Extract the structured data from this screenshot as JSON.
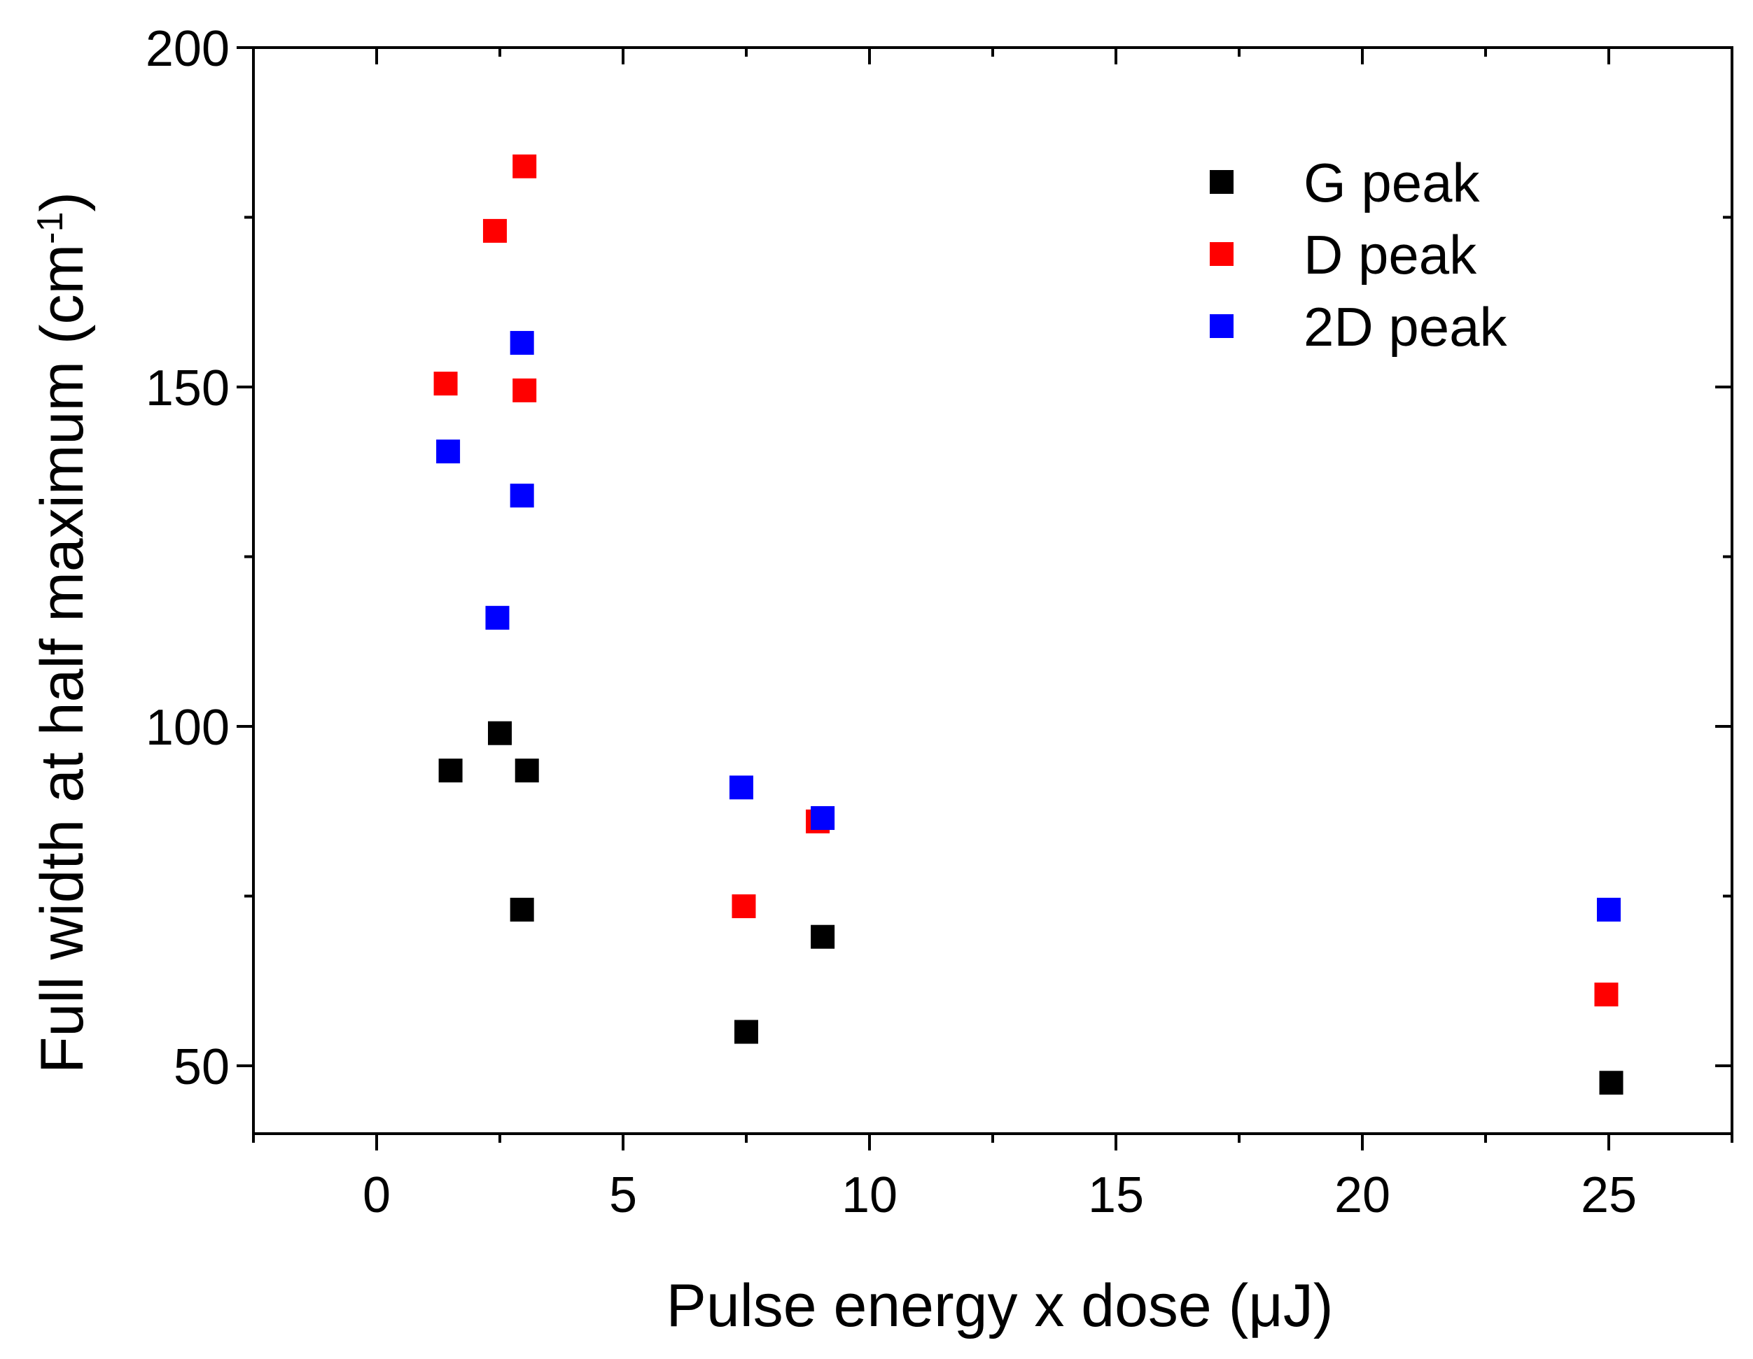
{
  "chart_data": {
    "type": "scatter",
    "title": "",
    "xlabel": "Pulse energy x dose (μJ)",
    "ylabel_main": "Full width at half maximum (cm",
    "ylabel_sup": "-1",
    "ylabel_close": ")",
    "xlim": [
      -2.5,
      27.5
    ],
    "ylim": [
      40,
      200
    ],
    "xticks": [
      0,
      5,
      10,
      15,
      20,
      25
    ],
    "xtick_labels": [
      "0",
      "5",
      "10",
      "15",
      "20",
      "25"
    ],
    "yticks": [
      50,
      100,
      150,
      200
    ],
    "ytick_labels": [
      "50",
      "100",
      "150",
      "200"
    ],
    "grid": false,
    "legend_position": "top-right",
    "series": [
      {
        "name": "G peak",
        "color": "#000000",
        "points": [
          [
            1.5,
            93.5
          ],
          [
            2.5,
            99
          ],
          [
            3.05,
            93.5
          ],
          [
            2.95,
            73
          ],
          [
            7.5,
            55
          ],
          [
            9.05,
            69
          ],
          [
            25.05,
            47.5
          ]
        ]
      },
      {
        "name": "D peak",
        "color": "#ff0000",
        "points": [
          [
            1.4,
            150.5
          ],
          [
            2.4,
            173
          ],
          [
            3.0,
            182.5
          ],
          [
            3.0,
            149.5
          ],
          [
            7.45,
            73.5
          ],
          [
            8.95,
            86
          ],
          [
            24.95,
            60.5
          ]
        ]
      },
      {
        "name": "2D peak",
        "color": "#0000ff",
        "points": [
          [
            1.45,
            140.5
          ],
          [
            2.45,
            116
          ],
          [
            2.95,
            134
          ],
          [
            2.95,
            156.5
          ],
          [
            7.4,
            91
          ],
          [
            9.05,
            86.5
          ],
          [
            25.0,
            73
          ]
        ]
      }
    ]
  }
}
